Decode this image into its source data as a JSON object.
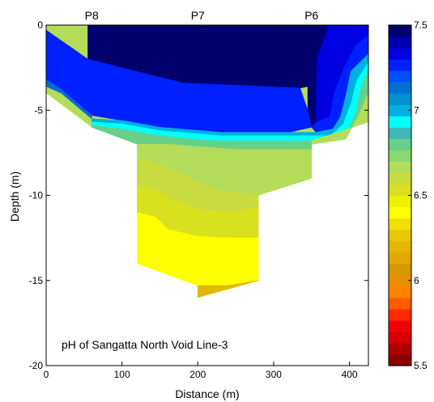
{
  "chart_data": {
    "type": "contour",
    "annotation": "pH of Sangatta North Void Line-3",
    "xlabel": "Distance (m)",
    "ylabel": "Depth (m)",
    "xlim": [
      0,
      425
    ],
    "ylim": [
      -20,
      0
    ],
    "xticks": [
      0,
      100,
      200,
      300,
      400
    ],
    "yticks": [
      0,
      -5,
      -10,
      -15,
      -20
    ],
    "station_labels": [
      {
        "name": "P8",
        "x": 60
      },
      {
        "name": "P7",
        "x": 200
      },
      {
        "name": "P6",
        "x": 350
      }
    ],
    "colorbar": {
      "min": 5.5,
      "max": 7.5,
      "ticks": [
        7.5,
        7,
        6.5,
        6,
        5.5
      ],
      "colors": [
        "#8b0000",
        "#b00000",
        "#d60000",
        "#f00000",
        "#ff2800",
        "#ff5a00",
        "#ff8200",
        "#e98f00",
        "#d89800",
        "#e0a800",
        "#e3b800",
        "#e8c800",
        "#f2df00",
        "#ffff00",
        "#eef000",
        "#d8e020",
        "#c8dc40",
        "#b3dd58",
        "#8ad870",
        "#66d08a",
        "#40b8b8",
        "#00ffff",
        "#00b0e0",
        "#0090d0",
        "#0070d0",
        "#0050ff",
        "#0020ff",
        "#0000e0",
        "#0000b0",
        "#00006e"
      ]
    },
    "section_boundary": [
      [
        0,
        0
      ],
      [
        425,
        0
      ],
      [
        425,
        -5.7
      ],
      [
        350,
        -6.8
      ],
      [
        350,
        -9
      ],
      [
        280,
        -10
      ],
      [
        280,
        -15
      ],
      [
        200,
        -16
      ],
      [
        200,
        -15.3
      ],
      [
        120,
        -14
      ],
      [
        120,
        -7
      ],
      [
        60,
        -6
      ],
      [
        0,
        -4
      ]
    ],
    "bands": [
      {
        "value": 7.45,
        "color": "#00006e",
        "polygon": [
          [
            55,
            0
          ],
          [
            345,
            0
          ],
          [
            345,
            -3.6
          ],
          [
            335,
            -3.7
          ],
          [
            180,
            -3.4
          ],
          [
            90,
            -2.4
          ],
          [
            55,
            -2
          ]
        ]
      },
      {
        "value": 7.45,
        "color": "#00006e",
        "polygon": [
          [
            345,
            0
          ],
          [
            373,
            0
          ],
          [
            357,
            -2
          ],
          [
            356,
            -5.7
          ],
          [
            350,
            -6
          ],
          [
            345,
            -5
          ]
        ]
      },
      {
        "value": 7.35,
        "color": "#0000e0",
        "polygon": [
          [
            373,
            0
          ],
          [
            425,
            0
          ],
          [
            425,
            -0.6
          ],
          [
            408,
            -1.2
          ],
          [
            392,
            -2.6
          ],
          [
            380,
            -4
          ],
          [
            374,
            -5.4
          ],
          [
            356,
            -5.7
          ],
          [
            357,
            -2
          ]
        ]
      },
      {
        "value": 7.2,
        "color": "#0020ff",
        "polygon": [
          [
            0,
            -0.3
          ],
          [
            55,
            -2
          ],
          [
            90,
            -2.4
          ],
          [
            180,
            -3.4
          ],
          [
            335,
            -3.7
          ],
          [
            345,
            -5
          ],
          [
            350,
            -6
          ],
          [
            320,
            -6.3
          ],
          [
            230,
            -6.3
          ],
          [
            150,
            -6
          ],
          [
            100,
            -5.6
          ],
          [
            60,
            -5.3
          ],
          [
            20,
            -3.8
          ],
          [
            0,
            -3.2
          ]
        ]
      },
      {
        "value": 7.2,
        "color": "#0020ff",
        "polygon": [
          [
            425,
            -0.6
          ],
          [
            425,
            -1.7
          ],
          [
            402,
            -2.7
          ],
          [
            395,
            -4.2
          ],
          [
            388,
            -5.4
          ],
          [
            378,
            -6.1
          ],
          [
            356,
            -6.3
          ],
          [
            350,
            -6
          ],
          [
            356,
            -5.7
          ],
          [
            374,
            -5.4
          ],
          [
            380,
            -4
          ],
          [
            392,
            -2.6
          ],
          [
            408,
            -1.2
          ]
        ]
      },
      {
        "value": 7.0,
        "color": "#0070d0",
        "polygon": [
          [
            0,
            -3.2
          ],
          [
            20,
            -3.8
          ],
          [
            60,
            -5.3
          ],
          [
            60,
            -5.5
          ],
          [
            20,
            -4
          ],
          [
            0,
            -3.6
          ]
        ]
      },
      {
        "value": 6.85,
        "color": "#00b0e0",
        "polygon": [
          [
            60,
            -5.5
          ],
          [
            100,
            -5.6
          ],
          [
            150,
            -6
          ],
          [
            230,
            -6.3
          ],
          [
            320,
            -6.3
          ],
          [
            356,
            -6.3
          ],
          [
            378,
            -6.1
          ],
          [
            388,
            -5.4
          ],
          [
            395,
            -4.2
          ],
          [
            402,
            -2.7
          ],
          [
            425,
            -1.7
          ],
          [
            425,
            -2.2
          ],
          [
            410,
            -3.2
          ],
          [
            402,
            -4.6
          ],
          [
            392,
            -5.8
          ],
          [
            375,
            -6.5
          ],
          [
            330,
            -6.5
          ],
          [
            230,
            -6.5
          ],
          [
            150,
            -6.2
          ],
          [
            100,
            -5.8
          ],
          [
            60,
            -5.7
          ]
        ]
      },
      {
        "value": 6.75,
        "color": "#00ffff",
        "polygon": [
          [
            60,
            -5.7
          ],
          [
            100,
            -5.8
          ],
          [
            150,
            -6.2
          ],
          [
            230,
            -6.5
          ],
          [
            330,
            -6.5
          ],
          [
            375,
            -6.5
          ],
          [
            392,
            -5.8
          ],
          [
            402,
            -4.6
          ],
          [
            410,
            -3.2
          ],
          [
            425,
            -2.2
          ],
          [
            425,
            -2.6
          ],
          [
            415,
            -3.8
          ],
          [
            408,
            -5.2
          ],
          [
            398,
            -6.2
          ],
          [
            380,
            -6.8
          ],
          [
            300,
            -6.8
          ],
          [
            220,
            -6.8
          ],
          [
            150,
            -6.5
          ],
          [
            100,
            -6.1
          ],
          [
            60,
            -5.9
          ]
        ]
      },
      {
        "value": 6.6,
        "color": "#66d08a",
        "polygon": [
          [
            60,
            -5.9
          ],
          [
            100,
            -6.1
          ],
          [
            150,
            -6.5
          ],
          [
            220,
            -6.8
          ],
          [
            300,
            -6.8
          ],
          [
            380,
            -6.8
          ],
          [
            398,
            -6.2
          ],
          [
            408,
            -5.2
          ],
          [
            415,
            -3.8
          ],
          [
            425,
            -2.6
          ],
          [
            425,
            -4
          ],
          [
            410,
            -5.5
          ],
          [
            395,
            -6.7
          ],
          [
            350,
            -7
          ],
          [
            350,
            -7.3
          ],
          [
            250,
            -7.3
          ],
          [
            160,
            -7
          ],
          [
            120,
            -7
          ],
          [
            60,
            -6
          ]
        ]
      },
      {
        "value": 6.45,
        "color": "#b3dd58",
        "polygon": [
          [
            425,
            -4
          ],
          [
            425,
            -5.7
          ],
          [
            350,
            -6.8
          ],
          [
            350,
            -7
          ],
          [
            395,
            -6.7
          ],
          [
            410,
            -5.5
          ]
        ]
      },
      {
        "value": 6.45,
        "color": "#b3dd58",
        "polygon": [
          [
            120,
            -7
          ],
          [
            160,
            -7
          ],
          [
            250,
            -7.3
          ],
          [
            350,
            -7.3
          ],
          [
            350,
            -9
          ],
          [
            280,
            -10
          ],
          [
            230,
            -9.7
          ],
          [
            200,
            -9.2
          ],
          [
            170,
            -8.6
          ],
          [
            140,
            -8
          ],
          [
            120,
            -7.8
          ]
        ]
      },
      {
        "value": 6.35,
        "color": "#c8dc40",
        "polygon": [
          [
            120,
            -7.8
          ],
          [
            140,
            -8
          ],
          [
            170,
            -8.6
          ],
          [
            200,
            -9.2
          ],
          [
            230,
            -9.7
          ],
          [
            280,
            -10
          ],
          [
            280,
            -10.7
          ],
          [
            240,
            -11
          ],
          [
            200,
            -10.8
          ],
          [
            165,
            -10.2
          ],
          [
            140,
            -9.6
          ],
          [
            120,
            -9.6
          ]
        ]
      },
      {
        "value": 6.3,
        "color": "#d8e020",
        "polygon": [
          [
            120,
            -9.6
          ],
          [
            140,
            -9.6
          ],
          [
            165,
            -10.2
          ],
          [
            200,
            -10.8
          ],
          [
            240,
            -11
          ],
          [
            280,
            -10.7
          ],
          [
            280,
            -12.5
          ],
          [
            240,
            -12.5
          ],
          [
            200,
            -12.4
          ],
          [
            160,
            -12
          ],
          [
            145,
            -11.3
          ],
          [
            120,
            -11
          ]
        ]
      },
      {
        "value": 6.2,
        "color": "#ffff00",
        "polygon": [
          [
            120,
            -11
          ],
          [
            145,
            -11.3
          ],
          [
            160,
            -12
          ],
          [
            200,
            -12.4
          ],
          [
            240,
            -12.5
          ],
          [
            280,
            -12.5
          ],
          [
            280,
            -15
          ],
          [
            240,
            -15.3
          ],
          [
            200,
            -15.3
          ],
          [
            120,
            -14
          ]
        ]
      },
      {
        "value": 6.05,
        "color": "#e0b800",
        "polygon": [
          [
            200,
            -15.3
          ],
          [
            240,
            -15.3
          ],
          [
            280,
            -15
          ],
          [
            200,
            -16
          ]
        ]
      }
    ]
  }
}
